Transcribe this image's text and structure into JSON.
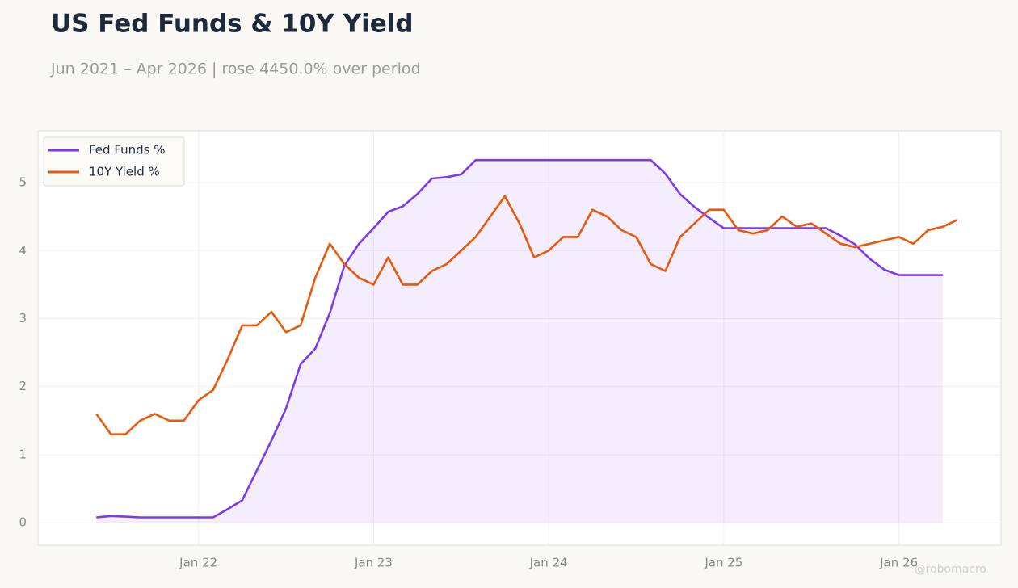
{
  "chart_data": {
    "type": "line",
    "title": "US Fed Funds & 10Y Yield",
    "subtitle": "Jun 2021 – Apr 2026 | rose 4450.0% over period",
    "watermark": "@robomacro",
    "x": [
      "2021-06",
      "2021-07",
      "2021-08",
      "2021-09",
      "2021-10",
      "2021-11",
      "2021-12",
      "2022-01",
      "2022-02",
      "2022-03",
      "2022-04",
      "2022-05",
      "2022-06",
      "2022-07",
      "2022-08",
      "2022-09",
      "2022-10",
      "2022-11",
      "2022-12",
      "2023-01",
      "2023-02",
      "2023-03",
      "2023-04",
      "2023-05",
      "2023-06",
      "2023-07",
      "2023-08",
      "2023-09",
      "2023-10",
      "2023-11",
      "2023-12",
      "2024-01",
      "2024-02",
      "2024-03",
      "2024-04",
      "2024-05",
      "2024-06",
      "2024-07",
      "2024-08",
      "2024-09",
      "2024-10",
      "2024-11",
      "2024-12",
      "2025-01",
      "2025-02",
      "2025-03",
      "2025-04",
      "2025-05",
      "2025-06",
      "2025-07",
      "2025-08",
      "2025-09",
      "2025-10",
      "2025-11",
      "2025-12",
      "2026-01",
      "2026-02",
      "2026-03",
      "2026-04",
      "2026-05"
    ],
    "series": [
      {
        "name": "Fed Funds %",
        "color": "#7c3aed",
        "fill": true,
        "values": [
          0.08,
          0.1,
          0.09,
          0.08,
          0.08,
          0.08,
          0.08,
          0.08,
          0.08,
          0.2,
          0.33,
          0.77,
          1.21,
          1.68,
          2.33,
          2.56,
          3.08,
          3.78,
          4.1,
          4.33,
          4.57,
          4.65,
          4.83,
          5.06,
          5.08,
          5.12,
          5.33,
          5.33,
          5.33,
          5.33,
          5.33,
          5.33,
          5.33,
          5.33,
          5.33,
          5.33,
          5.33,
          5.33,
          5.33,
          5.13,
          4.83,
          4.64,
          4.48,
          4.33,
          4.33,
          4.33,
          4.33,
          4.33,
          4.33,
          4.33,
          4.33,
          4.22,
          4.09,
          3.88,
          3.72,
          3.64,
          3.64,
          3.64,
          3.64,
          null
        ]
      },
      {
        "name": "10Y Yield %",
        "color": "#ea580c",
        "fill": false,
        "values": [
          1.6,
          1.3,
          1.3,
          1.5,
          1.6,
          1.5,
          1.5,
          1.8,
          1.95,
          2.4,
          2.9,
          2.9,
          3.1,
          2.8,
          2.9,
          3.6,
          4.1,
          3.8,
          3.6,
          3.5,
          3.9,
          3.5,
          3.5,
          3.7,
          3.8,
          4.0,
          4.2,
          4.5,
          4.8,
          4.4,
          3.9,
          4.0,
          4.2,
          4.2,
          4.6,
          4.5,
          4.3,
          4.2,
          3.8,
          3.7,
          4.2,
          4.4,
          4.6,
          4.6,
          4.3,
          4.25,
          4.3,
          4.5,
          4.35,
          4.4,
          4.25,
          4.1,
          4.05,
          4.1,
          4.15,
          4.2,
          4.1,
          4.3,
          4.35,
          4.45
        ]
      }
    ],
    "xlim": [
      "2021-02",
      "2026-08"
    ],
    "xticks": [
      {
        "value": "2022-01",
        "label": "Jan 22"
      },
      {
        "value": "2023-01",
        "label": "Jan 23"
      },
      {
        "value": "2024-01",
        "label": "Jan 24"
      },
      {
        "value": "2025-01",
        "label": "Jan 25"
      },
      {
        "value": "2026-01",
        "label": "Jan 26"
      }
    ],
    "ylim": [
      -0.33,
      5.76
    ],
    "yticks": [
      0,
      1,
      2,
      3,
      4,
      5
    ],
    "grid": true,
    "legend": "upper-left"
  }
}
